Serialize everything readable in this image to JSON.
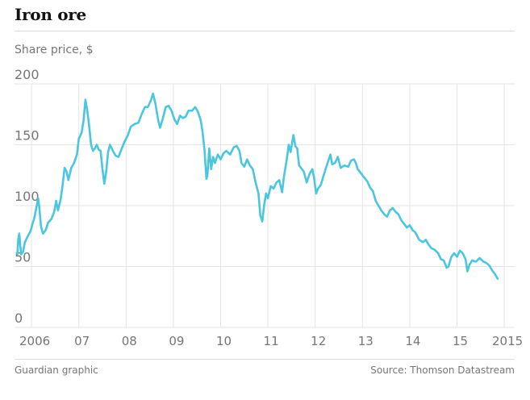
{
  "title": "Iron ore",
  "footer": {
    "credit": "Guardian graphic",
    "source": "Source: Thomson Datastream"
  },
  "colors": {
    "line": "#4bc6df",
    "grid": "#e5e5e5",
    "text": "#767676"
  },
  "chart_data": {
    "type": "line",
    "title": "Iron ore",
    "ylabel": "Share price, $",
    "ylim": [
      0,
      200
    ],
    "xlim": [
      2005.5,
      2016.1
    ],
    "grid": true,
    "legend": "none",
    "y_ticks": [
      {
        "value": 0,
        "label": "0"
      },
      {
        "value": 50,
        "label": "50"
      },
      {
        "value": 100,
        "label": "100"
      },
      {
        "value": 150,
        "label": "150"
      },
      {
        "value": 200,
        "label": "200"
      }
    ],
    "x_ticks": [
      {
        "value": 2006,
        "label": "2006"
      },
      {
        "value": 2007,
        "label": "07"
      },
      {
        "value": 2008,
        "label": "08"
      },
      {
        "value": 2009,
        "label": "09"
      },
      {
        "value": 2010,
        "label": "10"
      },
      {
        "value": 2011,
        "label": "11"
      },
      {
        "value": 2012,
        "label": "12"
      },
      {
        "value": 2013,
        "label": "13"
      },
      {
        "value": 2014,
        "label": "14"
      },
      {
        "value": 2015,
        "label": "15"
      },
      {
        "value": 2016,
        "label": "2015"
      }
    ],
    "series": [
      {
        "values": [
          [
            2005.7,
            60
          ],
          [
            2005.72,
            73
          ],
          [
            2005.74,
            77
          ],
          [
            2005.76,
            68
          ],
          [
            2005.78,
            60
          ],
          [
            2005.82,
            62
          ],
          [
            2005.86,
            70
          ],
          [
            2005.92,
            75
          ],
          [
            2005.98,
            79
          ],
          [
            2006.02,
            85
          ],
          [
            2006.06,
            90
          ],
          [
            2006.1,
            98
          ],
          [
            2006.14,
            106
          ],
          [
            2006.16,
            100
          ],
          [
            2006.2,
            83
          ],
          [
            2006.24,
            77
          ],
          [
            2006.3,
            80
          ],
          [
            2006.35,
            86
          ],
          [
            2006.42,
            89
          ],
          [
            2006.48,
            95
          ],
          [
            2006.52,
            104
          ],
          [
            2006.56,
            96
          ],
          [
            2006.62,
            106
          ],
          [
            2006.66,
            118
          ],
          [
            2006.7,
            131
          ],
          [
            2006.74,
            128
          ],
          [
            2006.78,
            121
          ],
          [
            2006.84,
            131
          ],
          [
            2006.9,
            135
          ],
          [
            2006.96,
            142
          ],
          [
            2007.0,
            155
          ],
          [
            2007.06,
            160
          ],
          [
            2007.1,
            170
          ],
          [
            2007.14,
            187
          ],
          [
            2007.18,
            178
          ],
          [
            2007.22,
            165
          ],
          [
            2007.26,
            150
          ],
          [
            2007.3,
            145
          ],
          [
            2007.34,
            147
          ],
          [
            2007.38,
            150
          ],
          [
            2007.42,
            146
          ],
          [
            2007.46,
            145
          ],
          [
            2007.5,
            130
          ],
          [
            2007.54,
            118
          ],
          [
            2007.58,
            128
          ],
          [
            2007.62,
            144
          ],
          [
            2007.66,
            150
          ],
          [
            2007.72,
            145
          ],
          [
            2007.78,
            141
          ],
          [
            2007.84,
            140
          ],
          [
            2007.9,
            146
          ],
          [
            2007.96,
            152
          ],
          [
            2008.04,
            158
          ],
          [
            2008.1,
            165
          ],
          [
            2008.18,
            167
          ],
          [
            2008.26,
            168
          ],
          [
            2008.34,
            176
          ],
          [
            2008.4,
            181
          ],
          [
            2008.46,
            181
          ],
          [
            2008.52,
            186
          ],
          [
            2008.57,
            192
          ],
          [
            2008.62,
            184
          ],
          [
            2008.68,
            170
          ],
          [
            2008.72,
            164
          ],
          [
            2008.78,
            172
          ],
          [
            2008.84,
            181
          ],
          [
            2008.9,
            182
          ],
          [
            2008.96,
            178
          ],
          [
            2009.02,
            171
          ],
          [
            2009.08,
            167
          ],
          [
            2009.14,
            174
          ],
          [
            2009.2,
            172
          ],
          [
            2009.26,
            173
          ],
          [
            2009.32,
            178
          ],
          [
            2009.4,
            178
          ],
          [
            2009.46,
            181
          ],
          [
            2009.52,
            177
          ],
          [
            2009.58,
            170
          ],
          [
            2009.62,
            160
          ],
          [
            2009.66,
            145
          ],
          [
            2009.7,
            122
          ],
          [
            2009.72,
            125
          ],
          [
            2009.76,
            147
          ],
          [
            2009.8,
            130
          ],
          [
            2009.84,
            140
          ],
          [
            2009.88,
            135
          ],
          [
            2009.94,
            142
          ],
          [
            2010.0,
            138
          ],
          [
            2010.06,
            143
          ],
          [
            2010.12,
            145
          ],
          [
            2010.2,
            142
          ],
          [
            2010.28,
            148
          ],
          [
            2010.34,
            149
          ],
          [
            2010.4,
            145
          ],
          [
            2010.44,
            135
          ],
          [
            2010.5,
            132
          ],
          [
            2010.56,
            138
          ],
          [
            2010.62,
            133
          ],
          [
            2010.68,
            130
          ],
          [
            2010.74,
            119
          ],
          [
            2010.8,
            110
          ],
          [
            2010.84,
            92
          ],
          [
            2010.88,
            87
          ],
          [
            2010.92,
            100
          ],
          [
            2010.96,
            110
          ],
          [
            2011.0,
            106
          ],
          [
            2011.06,
            116
          ],
          [
            2011.12,
            114
          ],
          [
            2011.18,
            119
          ],
          [
            2011.24,
            121
          ],
          [
            2011.3,
            111
          ],
          [
            2011.34,
            124
          ],
          [
            2011.4,
            138
          ],
          [
            2011.44,
            150
          ],
          [
            2011.48,
            144
          ],
          [
            2011.54,
            158
          ],
          [
            2011.58,
            149
          ],
          [
            2011.62,
            147
          ],
          [
            2011.66,
            133
          ],
          [
            2011.7,
            131
          ],
          [
            2011.76,
            128
          ],
          [
            2011.82,
            119
          ],
          [
            2011.88,
            126
          ],
          [
            2011.94,
            130
          ],
          [
            2011.98,
            122
          ],
          [
            2012.02,
            110
          ],
          [
            2012.06,
            114
          ],
          [
            2012.12,
            117
          ],
          [
            2012.18,
            125
          ],
          [
            2012.22,
            130
          ],
          [
            2012.28,
            137
          ],
          [
            2012.32,
            142
          ],
          [
            2012.36,
            134
          ],
          [
            2012.42,
            135
          ],
          [
            2012.48,
            140
          ],
          [
            2012.54,
            131
          ],
          [
            2012.62,
            133
          ],
          [
            2012.7,
            132
          ],
          [
            2012.76,
            137
          ],
          [
            2012.82,
            138
          ],
          [
            2012.86,
            135
          ],
          [
            2012.9,
            130
          ],
          [
            2012.96,
            127
          ],
          [
            2013.02,
            124
          ],
          [
            2013.1,
            120
          ],
          [
            2013.16,
            115
          ],
          [
            2013.22,
            112
          ],
          [
            2013.28,
            104
          ],
          [
            2013.34,
            100
          ],
          [
            2013.4,
            96
          ],
          [
            2013.46,
            93
          ],
          [
            2013.52,
            91
          ],
          [
            2013.58,
            96
          ],
          [
            2013.64,
            98
          ],
          [
            2013.7,
            95
          ],
          [
            2013.76,
            93
          ],
          [
            2013.82,
            88
          ],
          [
            2013.88,
            85
          ],
          [
            2013.94,
            82
          ],
          [
            2014.0,
            84
          ],
          [
            2014.06,
            80
          ],
          [
            2014.12,
            78
          ],
          [
            2014.2,
            72
          ],
          [
            2014.28,
            70
          ],
          [
            2014.34,
            72
          ],
          [
            2014.4,
            68
          ],
          [
            2014.46,
            65
          ],
          [
            2014.52,
            64
          ],
          [
            2014.6,
            61
          ],
          [
            2014.66,
            56
          ],
          [
            2014.72,
            55
          ],
          [
            2014.78,
            49
          ],
          [
            2014.82,
            50
          ],
          [
            2014.88,
            58
          ],
          [
            2014.94,
            61
          ],
          [
            2015.0,
            58
          ],
          [
            2015.06,
            63
          ],
          [
            2015.12,
            61
          ],
          [
            2015.18,
            56
          ],
          [
            2015.22,
            46
          ],
          [
            2015.26,
            51
          ],
          [
            2015.32,
            55
          ],
          [
            2015.4,
            54
          ],
          [
            2015.48,
            57
          ],
          [
            2015.56,
            54
          ],
          [
            2015.62,
            53
          ],
          [
            2015.68,
            51
          ],
          [
            2015.74,
            47
          ],
          [
            2015.8,
            44
          ],
          [
            2015.86,
            40
          ]
        ]
      }
    ]
  }
}
